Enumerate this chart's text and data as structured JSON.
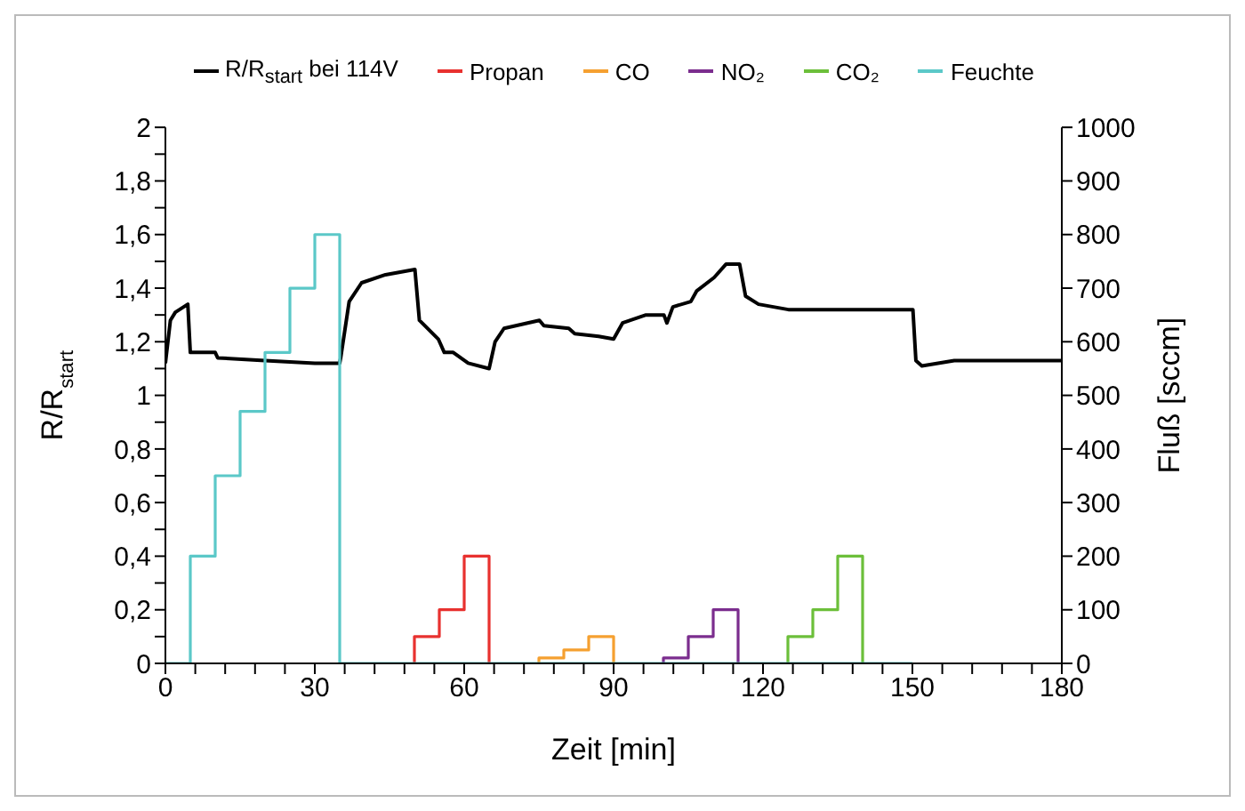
{
  "chart_data": {
    "type": "line",
    "xlabel": "Zeit [min]",
    "ylabel": "R/R$_{start}$",
    "y2label": "Fluß [sccm]",
    "xlim": [
      0,
      180
    ],
    "xticks": [
      0,
      {
        "value": 6,
        "label": null
      },
      {
        "value": 12,
        "label": null
      },
      {
        "value": 18,
        "label": null
      },
      {
        "value": 24,
        "label": null
      },
      30,
      {
        "value": 36,
        "label": null
      },
      {
        "value": 42,
        "label": null
      },
      {
        "value": 48,
        "label": null
      },
      {
        "value": 54,
        "label": null
      },
      60,
      {
        "value": 66,
        "label": null
      },
      {
        "value": 72,
        "label": null
      },
      {
        "value": 78,
        "label": null
      },
      {
        "value": 84,
        "label": null
      },
      90,
      {
        "value": 96,
        "label": null
      },
      {
        "value": 102,
        "label": null
      },
      {
        "value": 108,
        "label": null
      },
      {
        "value": 114,
        "label": null
      },
      120,
      {
        "value": 126,
        "label": null
      },
      {
        "value": 132,
        "label": null
      },
      {
        "value": 138,
        "label": null
      },
      {
        "value": 144,
        "label": null
      },
      150,
      {
        "value": 156,
        "label": null
      },
      {
        "value": 162,
        "label": null
      },
      {
        "value": 168,
        "label": null
      },
      {
        "value": 174,
        "label": null
      },
      180
    ],
    "ylim": [
      0,
      2
    ],
    "yticks": [
      0,
      {
        "value": 0.1,
        "label": null
      },
      {
        "value": 0.2,
        "label": "0,2"
      },
      {
        "value": 0.3,
        "label": null
      },
      {
        "value": 0.4,
        "label": "0,4"
      },
      {
        "value": 0.5,
        "label": null
      },
      {
        "value": 0.6,
        "label": "0,6"
      },
      {
        "value": 0.7,
        "label": null
      },
      {
        "value": 0.8,
        "label": "0,8"
      },
      {
        "value": 0.9,
        "label": null
      },
      1,
      {
        "value": 1.1,
        "label": null
      },
      {
        "value": 1.2,
        "label": "1,2"
      },
      {
        "value": 1.3,
        "label": null
      },
      {
        "value": 1.4,
        "label": "1,4"
      },
      {
        "value": 1.5,
        "label": null
      },
      {
        "value": 1.6,
        "label": "1,6"
      },
      {
        "value": 1.7,
        "label": null
      },
      {
        "value": 1.8,
        "label": "1,8"
      },
      {
        "value": 1.9,
        "label": null
      },
      2
    ],
    "y2lim": [
      0,
      1000
    ],
    "y2ticks": [
      0,
      100,
      200,
      300,
      400,
      500,
      600,
      700,
      800,
      900,
      1000
    ],
    "legend": "top",
    "marker": "none",
    "line_style": "solid",
    "series": [
      {
        "name": "R/R$_{start}$ bei 114V",
        "color": "#000000",
        "axis": "y",
        "x": [
          0,
          1,
          2,
          4.5,
          5,
          10,
          10.5,
          20,
          30,
          35,
          35.2,
          36.9,
          39.4,
          44.2,
          50.1,
          51,
          54.8,
          56,
          57.8,
          60.8,
          65,
          66.2,
          68,
          75.1,
          76,
          81,
          82.2,
          87,
          90,
          91.8,
          96.5,
          100.1,
          100.7,
          101.9,
          105.5,
          106.7,
          110.2,
          112.6,
          115.3,
          116.5,
          119.1,
          125.1,
          150.1,
          150.7,
          151.9,
          158.4,
          180
        ],
        "values": [
          1.12,
          1.28,
          1.31,
          1.34,
          1.16,
          1.16,
          1.14,
          1.13,
          1.12,
          1.12,
          1.14,
          1.35,
          1.42,
          1.45,
          1.47,
          1.28,
          1.21,
          1.16,
          1.16,
          1.12,
          1.1,
          1.2,
          1.25,
          1.28,
          1.26,
          1.25,
          1.23,
          1.22,
          1.21,
          1.27,
          1.3,
          1.3,
          1.27,
          1.33,
          1.35,
          1.39,
          1.44,
          1.49,
          1.49,
          1.37,
          1.34,
          1.32,
          1.32,
          1.13,
          1.11,
          1.13,
          1.13
        ]
      },
      {
        "name": "Propan",
        "color": "#e8312f",
        "type": "step",
        "axis": "y2",
        "x": [
          50,
          50,
          55,
          60,
          65
        ],
        "values": [
          0,
          50,
          100,
          200,
          0
        ]
      },
      {
        "name": "CO",
        "color": "#f5a030",
        "type": "step",
        "axis": "y2",
        "x": [
          75,
          75,
          80,
          85,
          90
        ],
        "values": [
          0,
          10,
          25,
          50,
          0
        ]
      },
      {
        "name": "NO₂",
        "color": "#7b2d8e",
        "type": "step",
        "axis": "y2",
        "x": [
          100,
          100,
          105,
          110,
          115
        ],
        "values": [
          0,
          10,
          50,
          100,
          0
        ]
      },
      {
        "name": "CO₂",
        "color": "#6cbf3a",
        "type": "step",
        "axis": "y2",
        "x": [
          125,
          125,
          130,
          135,
          140
        ],
        "values": [
          0,
          50,
          100,
          200,
          0
        ]
      },
      {
        "name": "Feuchte",
        "color": "#5bc8c8",
        "type": "step",
        "axis": "y2",
        "x": [
          0,
          5,
          10,
          15,
          20,
          25,
          30,
          35,
          150
        ],
        "values": [
          0,
          200,
          350,
          470,
          580,
          700,
          800,
          0,
          0
        ]
      }
    ]
  }
}
